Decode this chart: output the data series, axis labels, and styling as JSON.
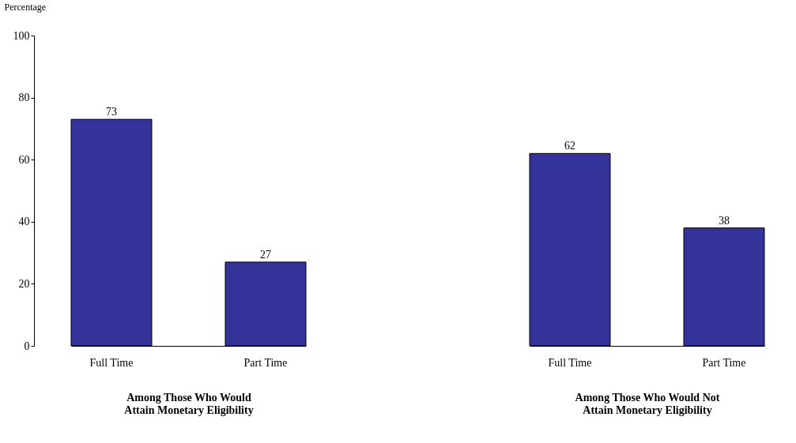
{
  "chart_data": [
    {
      "type": "bar",
      "ylabel": "Percentage",
      "xlabel": "Among Those Who Would\nAttain Monetary Eligibility",
      "categories": [
        "Full Time",
        "Part Time"
      ],
      "values": [
        73,
        27
      ],
      "color": "#333399",
      "ylim": [
        0,
        100
      ],
      "yticks": [
        0,
        20,
        40,
        60,
        80,
        100
      ],
      "data_labels": true,
      "grid": false
    },
    {
      "type": "bar",
      "xlabel": "Among Those Who Would Not\nAttain Monetary Eligibility",
      "categories": [
        "Full Time",
        "Part Time"
      ],
      "values": [
        62,
        38
      ],
      "color": "#333399",
      "ylim": [
        0,
        100
      ],
      "data_labels": true,
      "grid": false,
      "tick_labels": "x"
    }
  ]
}
